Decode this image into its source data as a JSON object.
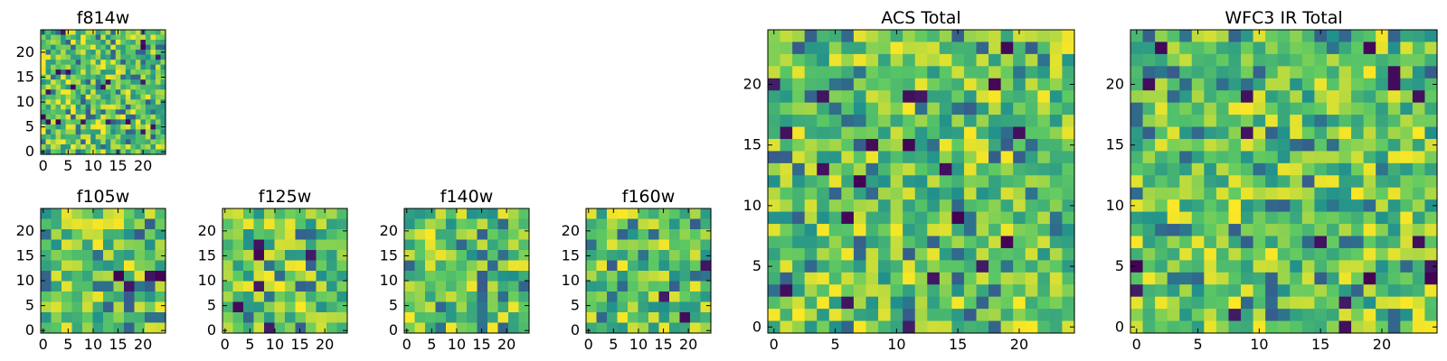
{
  "chart_data": [
    {
      "id": "f814w",
      "type": "heatmap",
      "title": "f814w",
      "grid_size": 25,
      "resolution": 25,
      "xlim": [
        0,
        25
      ],
      "ylim": [
        0,
        25
      ],
      "xticks": [
        0,
        5,
        10,
        15,
        20
      ],
      "yticks": [
        0,
        5,
        10,
        15,
        20
      ],
      "colormap": "viridis",
      "value_range": [
        0,
        1
      ],
      "seed": 814,
      "values": "random field, per-pixel noise"
    },
    {
      "id": "f105w",
      "type": "heatmap",
      "title": "f105w",
      "grid_size": 25,
      "resolution": 12,
      "xlim": [
        0,
        25
      ],
      "ylim": [
        0,
        25
      ],
      "xticks": [
        0,
        5,
        10,
        15,
        20
      ],
      "yticks": [
        0,
        5,
        10,
        15,
        20
      ],
      "colormap": "viridis",
      "value_range": [
        0,
        1
      ],
      "seed": 105,
      "values": "smooth random field"
    },
    {
      "id": "f125w",
      "type": "heatmap",
      "title": "f125w",
      "grid_size": 25,
      "resolution": 12,
      "xlim": [
        0,
        25
      ],
      "ylim": [
        0,
        25
      ],
      "xticks": [
        0,
        5,
        10,
        15,
        20
      ],
      "yticks": [
        0,
        5,
        10,
        15,
        20
      ],
      "colormap": "viridis",
      "value_range": [
        0,
        1
      ],
      "seed": 125,
      "values": "smooth random field"
    },
    {
      "id": "f140w",
      "type": "heatmap",
      "title": "f140w",
      "grid_size": 25,
      "resolution": 12,
      "xlim": [
        0,
        25
      ],
      "ylim": [
        0,
        25
      ],
      "xticks": [
        0,
        5,
        10,
        15,
        20
      ],
      "yticks": [
        0,
        5,
        10,
        15,
        20
      ],
      "colormap": "viridis",
      "value_range": [
        0,
        1
      ],
      "seed": 140,
      "values": "smooth random field"
    },
    {
      "id": "f160w",
      "type": "heatmap",
      "title": "f160w",
      "grid_size": 25,
      "resolution": 12,
      "xlim": [
        0,
        25
      ],
      "ylim": [
        0,
        25
      ],
      "xticks": [
        0,
        5,
        10,
        15,
        20
      ],
      "yticks": [
        0,
        5,
        10,
        15,
        20
      ],
      "colormap": "viridis",
      "value_range": [
        0,
        1
      ],
      "seed": 160,
      "values": "smooth random field"
    },
    {
      "id": "acs-total",
      "type": "heatmap",
      "title": "ACS Total",
      "grid_size": 25,
      "resolution": 25,
      "xlim": [
        0,
        25
      ],
      "ylim": [
        0,
        25
      ],
      "xticks": [
        0,
        5,
        10,
        15,
        20
      ],
      "yticks": [
        0,
        5,
        10,
        15,
        20
      ],
      "colormap": "viridis",
      "value_range": [
        0,
        1
      ],
      "seed": 31,
      "values": "random field, per-pixel noise"
    },
    {
      "id": "wfc3-ir-total",
      "type": "heatmap",
      "title": "WFC3 IR Total",
      "grid_size": 25,
      "resolution": 25,
      "xlim": [
        0,
        25
      ],
      "ylim": [
        0,
        25
      ],
      "xticks": [
        0,
        5,
        10,
        15,
        20
      ],
      "yticks": [
        0,
        5,
        10,
        15,
        20
      ],
      "colormap": "viridis",
      "value_range": [
        0,
        1
      ],
      "seed": 77,
      "values": "random field, per-pixel noise"
    }
  ],
  "colors": {
    "viridis_stops": [
      "#440154",
      "#3b528b",
      "#21908d",
      "#5dc963",
      "#fde725"
    ],
    "axis": "#000000",
    "background": "#ffffff"
  }
}
